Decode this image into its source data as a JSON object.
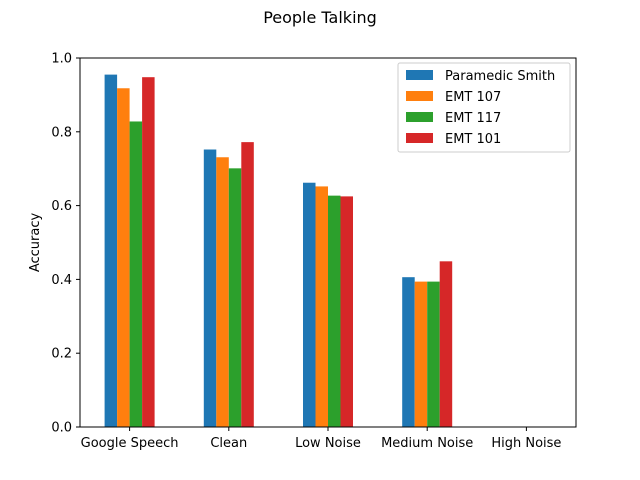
{
  "chart_data": {
    "type": "bar",
    "title": "People Talking",
    "xlabel": "",
    "ylabel": "Accuracy",
    "ylim": [
      0,
      1.0
    ],
    "yticks": [
      "0.0",
      "0.2",
      "0.4",
      "0.6",
      "0.8",
      "1.0"
    ],
    "categories": [
      "Google Speech",
      "Clean",
      "Low Noise",
      "Medium Noise",
      "High Noise"
    ],
    "series": [
      {
        "name": "Paramedic Smith",
        "color": "#1f77b4",
        "values": [
          0.955,
          0.752,
          0.662,
          0.406,
          0.0
        ]
      },
      {
        "name": "EMT 107",
        "color": "#ff7f0e",
        "values": [
          0.918,
          0.731,
          0.652,
          0.394,
          0.0
        ]
      },
      {
        "name": "EMT 117",
        "color": "#2ca02c",
        "values": [
          0.828,
          0.701,
          0.627,
          0.394,
          0.0
        ]
      },
      {
        "name": "EMT 101",
        "color": "#d62728",
        "values": [
          0.948,
          0.772,
          0.625,
          0.449,
          0.0
        ]
      }
    ],
    "legend_position": "top-right",
    "grid": false
  }
}
